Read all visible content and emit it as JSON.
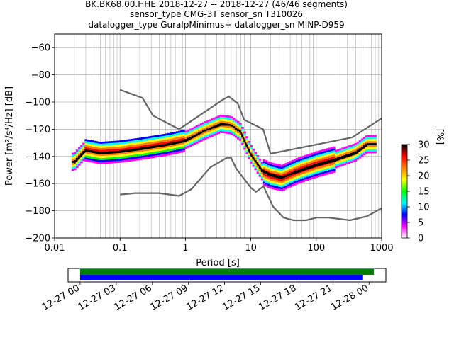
{
  "chart_data": {
    "type": "heatmap",
    "title_lines": [
      "BK.BK68.00.HHE   2018-12-27 -- 2018-12-27  (46/46 segments)",
      "sensor_type CMG-3T sensor_sn T310026",
      "datalogger_type GuralpMinimus+ datalogger_sn MINP-D959"
    ],
    "xlabel": "Period [s]",
    "ylabel": "Power [m²/s⁴/Hz] [dB]",
    "xscale": "log",
    "xlim": [
      0.01,
      1000
    ],
    "ylim": [
      -200,
      -50
    ],
    "grid": true,
    "x_ticks": [
      {
        "v": 0.01,
        "label": "0.01"
      },
      {
        "v": 0.1,
        "label": "0.1"
      },
      {
        "v": 1,
        "label": "1"
      },
      {
        "v": 10,
        "label": "10"
      },
      {
        "v": 100,
        "label": "100"
      },
      {
        "v": 1000,
        "label": "1000"
      }
    ],
    "y_ticks": [
      -200,
      -180,
      -160,
      -140,
      -120,
      -100,
      -80,
      -60
    ],
    "colorbar": {
      "label": "[%]",
      "min": 0,
      "max": 30,
      "ticks": [
        0,
        5,
        10,
        15,
        20,
        25,
        30
      ],
      "colors": [
        "#ffffff",
        "#ff00ff",
        "#0000ff",
        "#00ffff",
        "#00ff00",
        "#ffff00",
        "#ff8000",
        "#ff0000",
        "#000000"
      ]
    },
    "series": [
      {
        "role": "noise-model-high",
        "color": "#666666",
        "x": [
          0.1,
          0.22,
          0.32,
          0.8,
          3.8,
          4.6,
          6.3,
          7.9,
          15.4,
          20,
          354.8,
          1000
        ],
        "y": [
          -91,
          -97,
          -110,
          -120,
          -98,
          -96,
          -101,
          -113,
          -120,
          -138,
          -126,
          -112
        ]
      },
      {
        "role": "noise-model-low",
        "color": "#666666",
        "x": [
          0.1,
          0.17,
          0.4,
          0.8,
          1.24,
          2.4,
          4.3,
          5.0,
          6.0,
          10.0,
          12.0,
          15.6,
          21.9,
          31.6,
          45.0,
          70.0,
          101.0,
          154.0,
          328.0,
          600.0,
          1000.0
        ],
        "y": [
          -168,
          -167,
          -167,
          -169,
          -164,
          -148,
          -141,
          -141,
          -149,
          -163,
          -166,
          -162,
          -177,
          -185,
          -187,
          -187,
          -185,
          -185,
          -187,
          -184,
          -178
        ]
      },
      {
        "role": "mode",
        "color": "#000000",
        "x": [
          0.02,
          0.03,
          0.05,
          0.1,
          0.2,
          0.5,
          1,
          2,
          3.5,
          5,
          7,
          10,
          15,
          20,
          30,
          50,
          100,
          200,
          400,
          600
        ],
        "y": [
          -145,
          -136,
          -138,
          -137,
          -135,
          -132,
          -129,
          -121,
          -117,
          -117,
          -122,
          -139,
          -150,
          -153,
          -155,
          -152,
          -147,
          -143,
          -138,
          -132
        ]
      },
      {
        "role": "mean",
        "color": "#000000",
        "x": [
          0.02,
          0.03,
          0.05,
          0.1,
          0.2,
          0.5,
          1,
          2,
          3.5,
          5,
          7,
          10,
          15,
          20,
          30,
          50,
          100,
          200,
          400,
          600
        ],
        "y": [
          -144,
          -135,
          -137,
          -136,
          -134,
          -131,
          -128,
          -121,
          -116,
          -117,
          -122,
          -138,
          -151,
          -154,
          -156,
          -151,
          -146,
          -142,
          -137,
          -131
        ]
      }
    ],
    "timeline": {
      "tick_labels": [
        "12-27 00",
        "12-27 03",
        "12-27 06",
        "12-27 09",
        "12-27 12",
        "12-27 15",
        "12-27 18",
        "12-27 21",
        "12-28 00"
      ],
      "xlim_hours": [
        -1,
        25.4
      ],
      "bars": [
        {
          "color": "#008000",
          "start_hours": 0,
          "end_hours": 24.4
        },
        {
          "color": "#0000ff",
          "start_hours": 0,
          "end_hours": 23.5
        }
      ]
    }
  }
}
